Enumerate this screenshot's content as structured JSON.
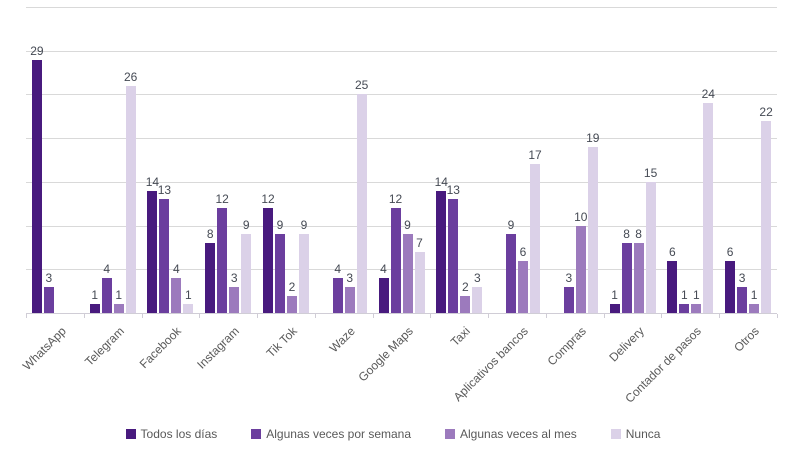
{
  "chart_data": {
    "type": "bar",
    "title": "",
    "xlabel": "",
    "ylabel": "",
    "ylim": [
      0,
      35
    ],
    "gridline_step": 5,
    "grid": true,
    "legend_position": "bottom",
    "value_labels": true,
    "categories": [
      "WhatsApp",
      "Telegram",
      "Facebook",
      "Instagram",
      "Tik Tok",
      "Waze",
      "Google Maps",
      "Taxi",
      "Aplicativos bancos",
      "Compras",
      "Delivery",
      "Contador de pasos",
      "Otros"
    ],
    "series": [
      {
        "name": "Todos los días",
        "color": "#481a7e",
        "values": [
          29,
          1,
          14,
          8,
          12,
          0,
          4,
          14,
          0,
          0,
          1,
          6,
          6
        ]
      },
      {
        "name": "Algunas veces por semana",
        "color": "#6b3e9e",
        "values": [
          3,
          4,
          13,
          12,
          9,
          4,
          12,
          13,
          9,
          3,
          8,
          1,
          3
        ]
      },
      {
        "name": "Algunas veces al mes",
        "color": "#9c7abd",
        "values": [
          0,
          1,
          4,
          3,
          2,
          3,
          9,
          2,
          6,
          10,
          8,
          1,
          1
        ]
      },
      {
        "name": "Nunca",
        "color": "#dbd1e8",
        "values": [
          0,
          26,
          1,
          9,
          9,
          25,
          7,
          3,
          17,
          19,
          15,
          24,
          22
        ]
      }
    ]
  }
}
